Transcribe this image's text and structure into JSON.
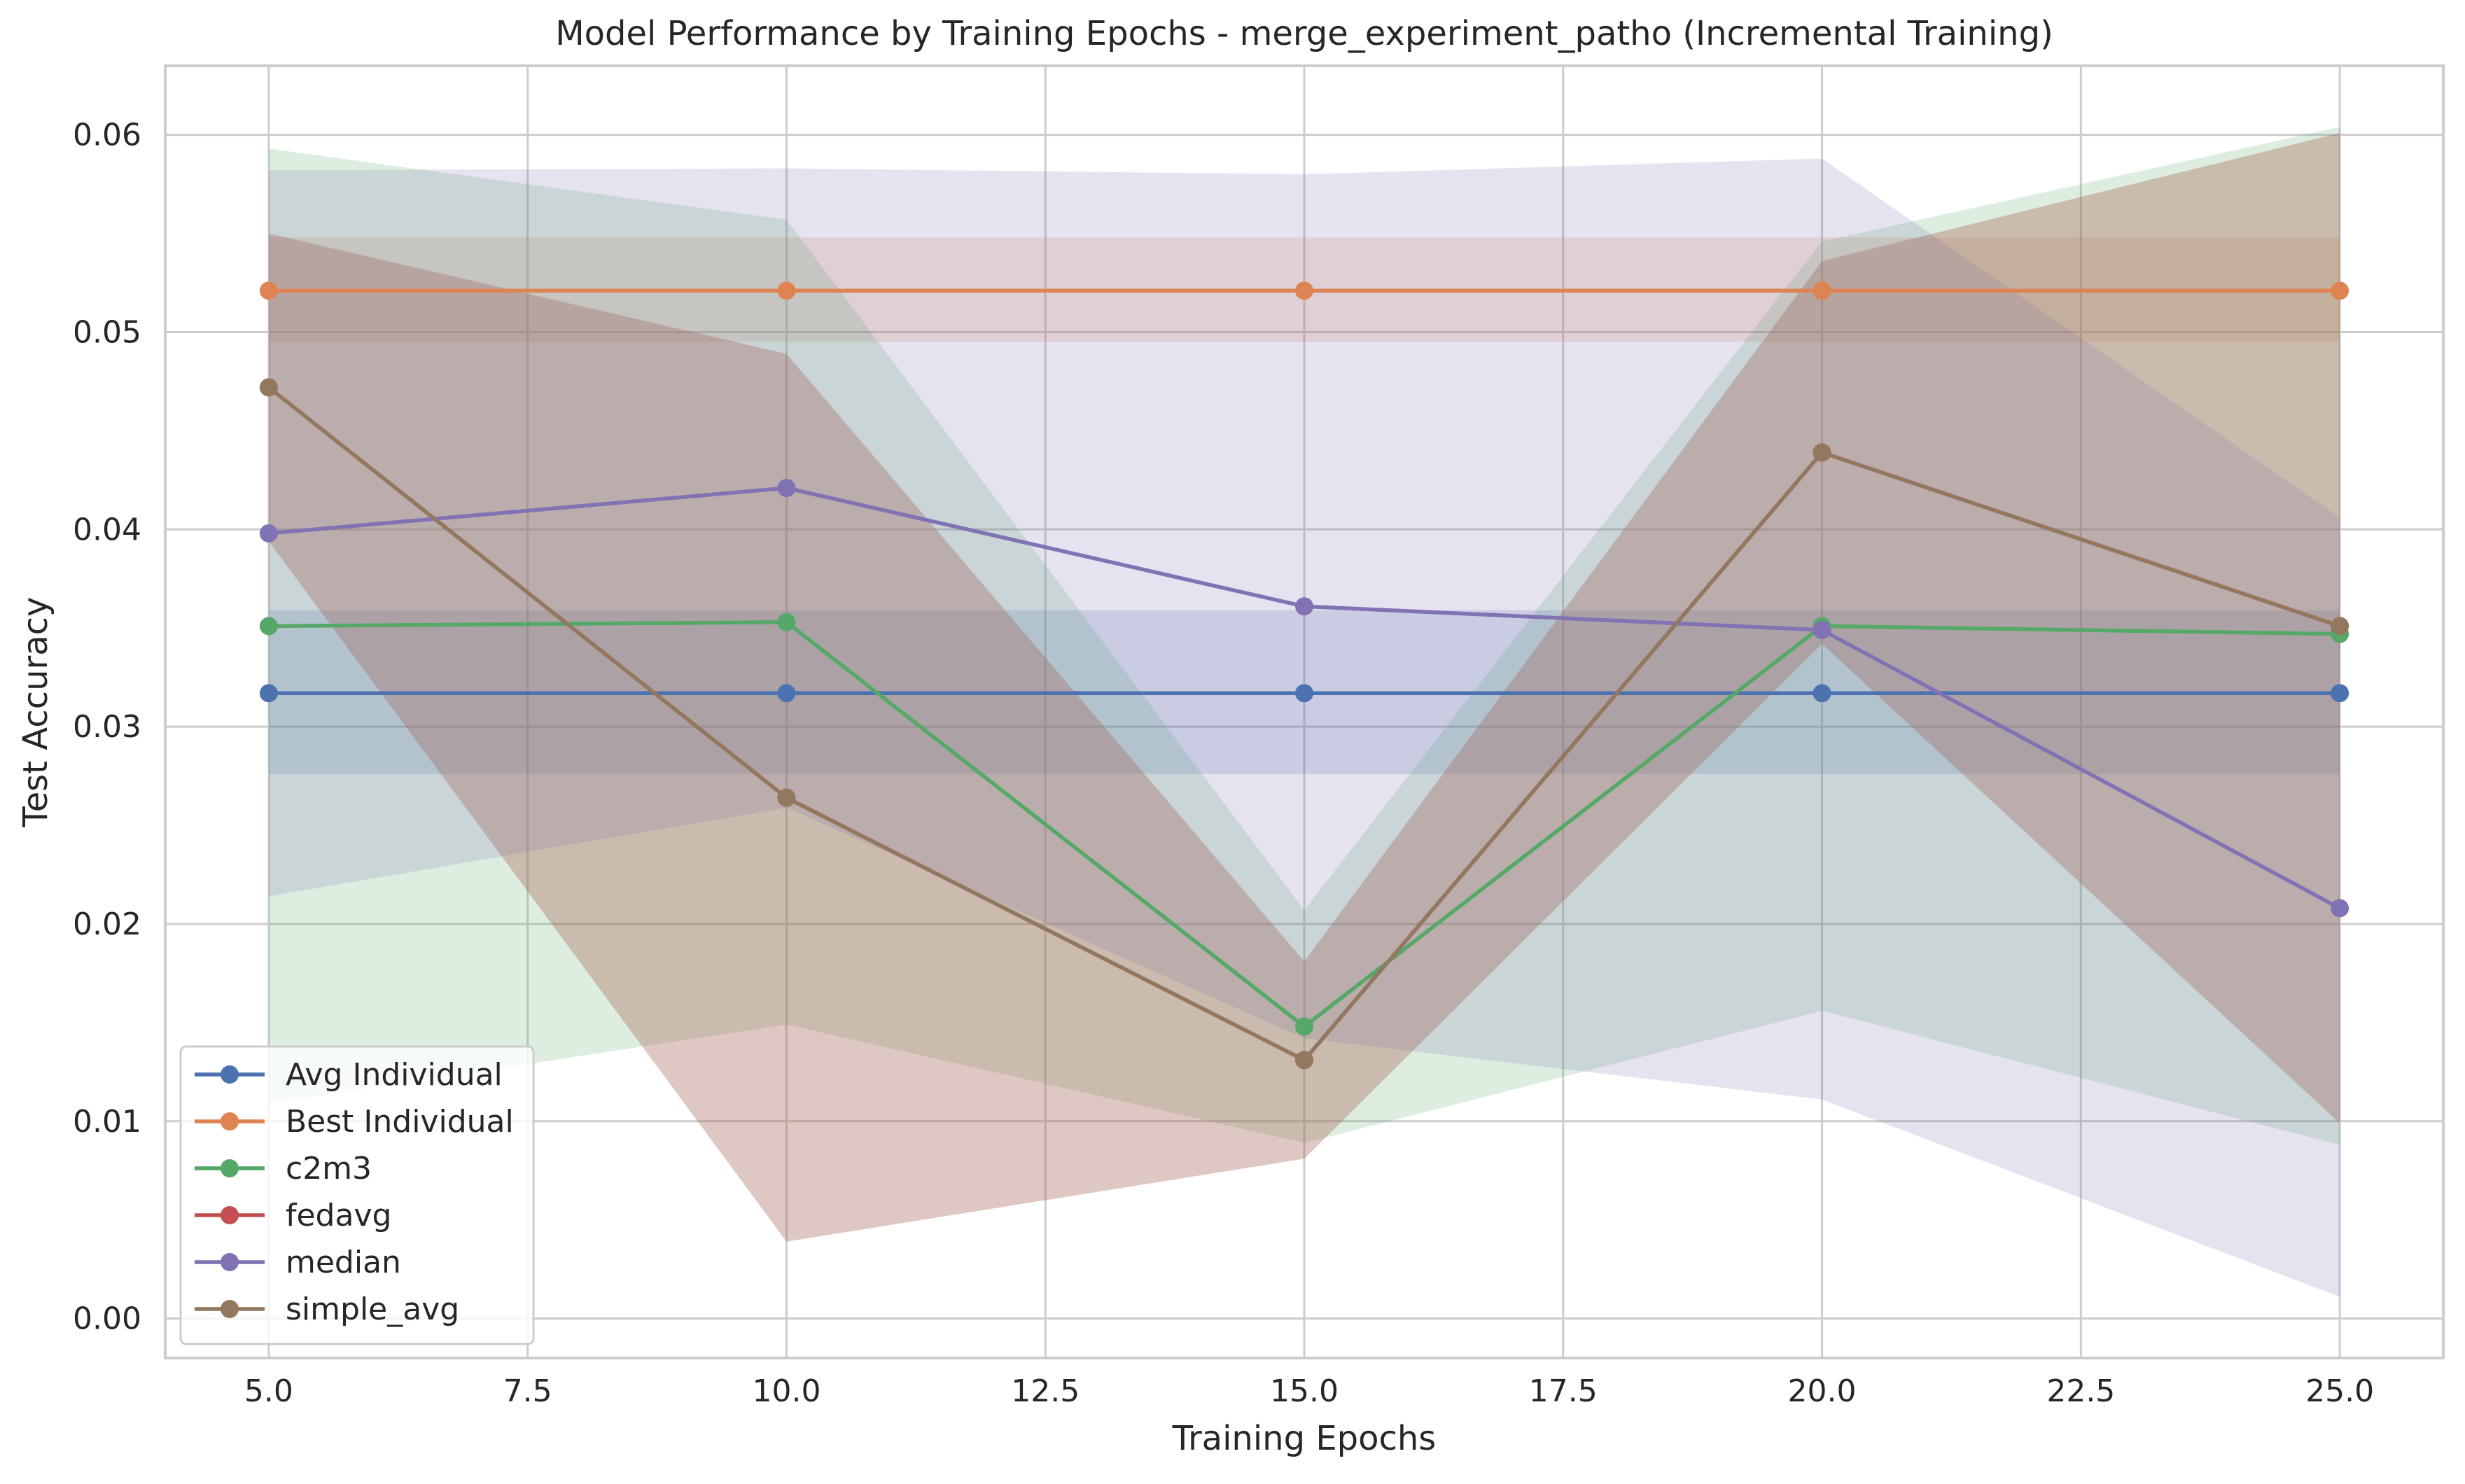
{
  "chart_data": {
    "type": "line",
    "title": "Model Performance by Training Epochs - merge_experiment_patho (Incremental Training)",
    "xlabel": "Training Epochs",
    "ylabel": "Test Accuracy",
    "xlim": [
      4.0,
      26.0
    ],
    "ylim": [
      -0.002,
      0.0635
    ],
    "xticks": [
      5.0,
      7.5,
      10.0,
      12.5,
      15.0,
      17.5,
      20.0,
      22.5,
      25.0
    ],
    "xtick_labels": [
      "5.0",
      "7.5",
      "10.0",
      "12.5",
      "15.0",
      "17.5",
      "20.0",
      "22.5",
      "25.0"
    ],
    "yticks": [
      0.0,
      0.01,
      0.02,
      0.03,
      0.04,
      0.05,
      0.06
    ],
    "ytick_labels": [
      "0.00",
      "0.01",
      "0.02",
      "0.03",
      "0.04",
      "0.05",
      "0.06"
    ],
    "grid": true,
    "legend_position": "lower-left",
    "x": [
      5,
      10,
      15,
      20,
      25
    ],
    "series": [
      {
        "name": "Avg Individual",
        "color": "#4c72b0",
        "values": [
          0.0317,
          0.0317,
          0.0317,
          0.0317,
          0.0317
        ],
        "band_low": [
          0.0276,
          0.0276,
          0.0276,
          0.0276,
          0.0276
        ],
        "band_high": [
          0.0359,
          0.0359,
          0.0359,
          0.0359,
          0.0359
        ]
      },
      {
        "name": "Best Individual",
        "color": "#dd8452",
        "values": [
          0.0521,
          0.0521,
          0.0521,
          0.0521,
          0.0521
        ],
        "band_low": [
          0.0495,
          0.0495,
          0.0495,
          0.0495,
          0.0495
        ],
        "band_high": [
          0.0548,
          0.0548,
          0.0548,
          0.0548,
          0.0548
        ]
      },
      {
        "name": "c2m3",
        "color": "#55a868",
        "values": [
          0.0351,
          0.0353,
          0.0148,
          0.0351,
          0.0347
        ],
        "band_low": [
          0.0109,
          0.0149,
          0.0089,
          0.0156,
          0.0088
        ],
        "band_high": [
          0.0593,
          0.0557,
          0.0207,
          0.0546,
          0.0604
        ]
      },
      {
        "name": "fedavg",
        "color": "#c44e52",
        "values": [
          0.0472,
          0.0264,
          0.0131,
          0.0439,
          0.0351
        ],
        "band_low": [
          0.0394,
          0.0039,
          0.0081,
          0.0342,
          0.0099
        ],
        "band_high": [
          0.055,
          0.0489,
          0.0181,
          0.0536,
          0.0601
        ]
      },
      {
        "name": "median",
        "color": "#8172b3",
        "values": [
          0.0398,
          0.0421,
          0.0361,
          0.0349,
          0.0208
        ],
        "band_low": [
          0.0214,
          0.0259,
          0.0142,
          0.0111,
          0.0011
        ],
        "band_high": [
          0.0582,
          0.0583,
          0.058,
          0.0588,
          0.0406
        ]
      },
      {
        "name": "simple_avg",
        "color": "#937860",
        "values": [
          0.0472,
          0.0264,
          0.0131,
          0.0439,
          0.0351
        ],
        "band_low": [
          0.0394,
          0.0039,
          0.0081,
          0.0342,
          0.0099
        ],
        "band_high": [
          0.055,
          0.0489,
          0.0181,
          0.0536,
          0.0601
        ]
      }
    ]
  }
}
